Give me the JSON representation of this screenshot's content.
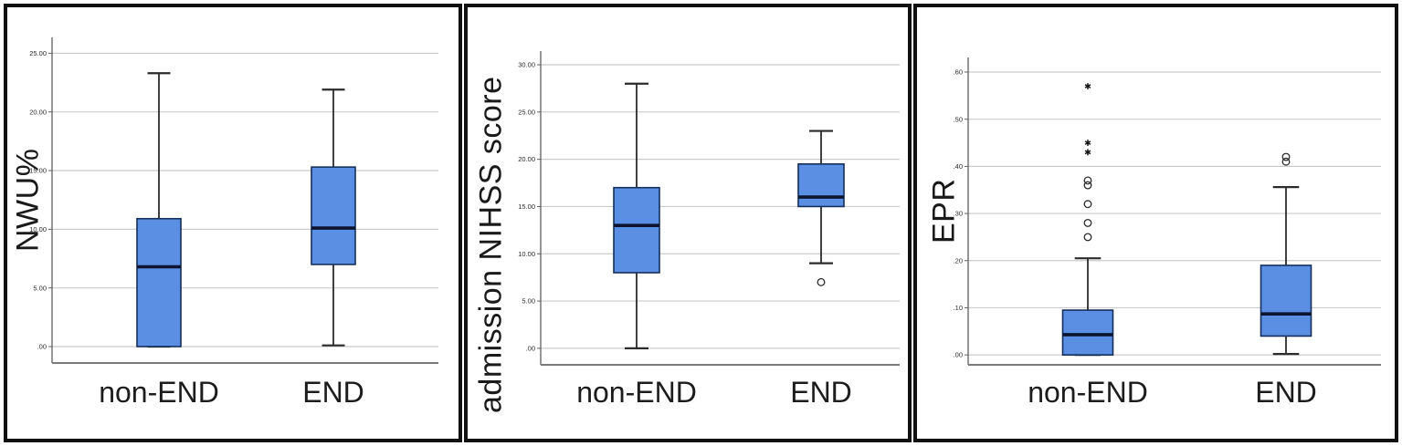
{
  "figure": {
    "background": "#ffffff",
    "panel_border_color": "#111111",
    "description": "Three SPSS-style box plots comparing non-END vs END groups"
  },
  "colors": {
    "box_fill": "#5a8fe3",
    "box_stroke": "#14305a",
    "median": "#0d1430",
    "whisker": "#2b2b2b",
    "grid": "#cbcbcb",
    "axis": "#5f5f5f",
    "x_axis": "#7a7a7a",
    "tick_text": "#2b2b2b",
    "outlier_stroke": "#2b2b2b"
  },
  "chart_data": [
    {
      "type": "box",
      "ylabel": "NWU%",
      "categories": [
        "non-END",
        "END"
      ],
      "yticks": {
        "labels": [
          "25.00",
          "20.00",
          "15.00",
          "10.00",
          "5.00",
          ".00"
        ],
        "values": [
          25,
          20,
          15,
          10,
          5,
          0
        ]
      },
      "ylim": [
        -1.4,
        26.35
      ],
      "grid": true,
      "boxes": [
        {
          "category": "non-END",
          "whisker_low": 0.0,
          "q1": 0.0,
          "median": 6.8,
          "q3": 10.9,
          "whisker_high": 23.3,
          "outliers": [],
          "extremes": []
        },
        {
          "category": "END",
          "whisker_low": 0.1,
          "q1": 7.0,
          "median": 10.1,
          "q3": 15.3,
          "whisker_high": 21.9,
          "outliers": [],
          "extremes": []
        }
      ]
    },
    {
      "type": "box",
      "ylabel": "admission NIHSS score",
      "categories": [
        "non-END",
        "END"
      ],
      "yticks": {
        "labels": [
          "30.00",
          "25.00",
          "20.00",
          "15.00",
          "10.00",
          "5.00",
          ".00"
        ],
        "values": [
          30,
          25,
          20,
          15,
          10,
          5,
          0
        ]
      },
      "ylim": [
        -1.75,
        31.45
      ],
      "grid": true,
      "boxes": [
        {
          "category": "non-END",
          "whisker_low": 0.0,
          "q1": 8.0,
          "median": 13.0,
          "q3": 17.0,
          "whisker_high": 28.0,
          "outliers": [],
          "extremes": []
        },
        {
          "category": "END",
          "whisker_low": 9.0,
          "q1": 15.0,
          "median": 16.0,
          "q3": 19.5,
          "whisker_high": 23.0,
          "outliers": [
            7.0
          ],
          "extremes": []
        }
      ]
    },
    {
      "type": "box",
      "ylabel": "EPR",
      "categories": [
        "non-END",
        "END"
      ],
      "yticks": {
        "labels": [
          ".60",
          ".50",
          ".40",
          ".30",
          ".20",
          ".10",
          ".00"
        ],
        "values": [
          0.6,
          0.5,
          0.4,
          0.3,
          0.2,
          0.1,
          0.0
        ]
      },
      "ylim": [
        -0.021,
        0.631
      ],
      "grid": true,
      "boxes": [
        {
          "category": "non-END",
          "whisker_low": 0.0,
          "q1": 0.0,
          "median": 0.043,
          "q3": 0.095,
          "whisker_high": 0.205,
          "outliers": [
            0.25,
            0.28,
            0.32,
            0.36,
            0.37
          ],
          "extremes": [
            0.43,
            0.45,
            0.57
          ]
        },
        {
          "category": "END",
          "whisker_low": 0.002,
          "q1": 0.04,
          "median": 0.087,
          "q3": 0.19,
          "whisker_high": 0.356,
          "outliers": [
            0.41,
            0.42
          ],
          "extremes": []
        }
      ]
    }
  ]
}
